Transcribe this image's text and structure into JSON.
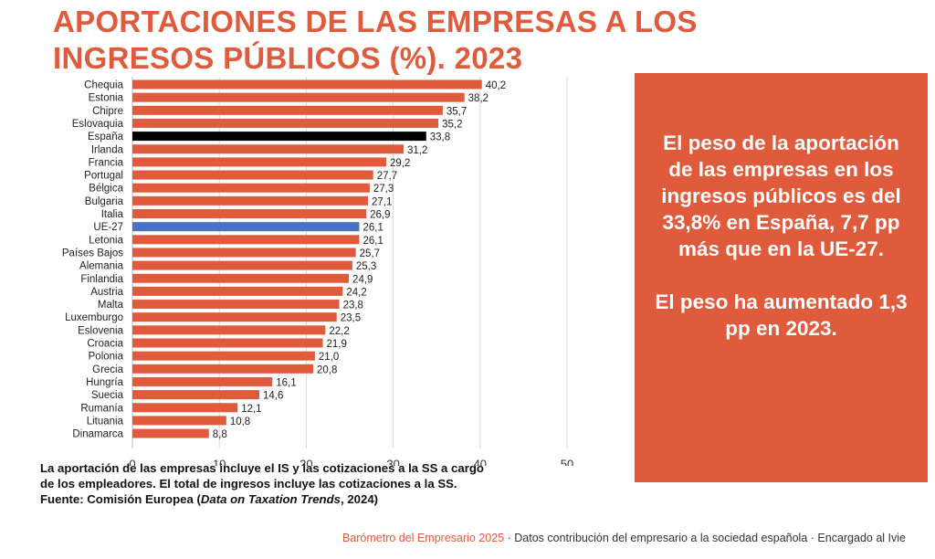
{
  "title": "APORTACIONES DE LAS EMPRESAS A LOS INGRESOS PÚBLICOS (%). 2023",
  "chart_data": {
    "type": "bar",
    "orientation": "horizontal",
    "title": "APORTACIONES DE LAS EMPRESAS A LOS INGRESOS PÚBLICOS (%). 2023",
    "xlabel": "",
    "ylabel": "",
    "xlim": [
      0,
      50
    ],
    "xticks": [
      0,
      10,
      20,
      30,
      40,
      50
    ],
    "grid": true,
    "categories": [
      "Chequia",
      "Estonia",
      "Chipre",
      "Eslovaquia",
      "España",
      "Irlanda",
      "Francia",
      "Portugal",
      "Bélgica",
      "Bulgaria",
      "Italia",
      "UE-27",
      "Letonia",
      "Países Bajos",
      "Alemania",
      "Finlandia",
      "Austria",
      "Malta",
      "Luxemburgo",
      "Eslovenia",
      "Croacia",
      "Polonia",
      "Grecia",
      "Hungría",
      "Suecia",
      "Rumanía",
      "Lituania",
      "Dinamarca"
    ],
    "values": [
      40.2,
      38.2,
      35.7,
      35.2,
      33.8,
      31.2,
      29.2,
      27.7,
      27.3,
      27.1,
      26.9,
      26.1,
      26.1,
      25.7,
      25.3,
      24.9,
      24.2,
      23.8,
      23.5,
      22.2,
      21.9,
      21.0,
      20.8,
      16.1,
      14.6,
      12.1,
      10.8,
      8.8
    ],
    "value_labels": [
      "40,2",
      "38,2",
      "35,7",
      "35,2",
      "33,8",
      "31,2",
      "29,2",
      "27,7",
      "27,3",
      "27,1",
      "26,9",
      "26,1",
      "26,1",
      "25,7",
      "25,3",
      "24,9",
      "24,2",
      "23,8",
      "23,5",
      "22,2",
      "21,9",
      "21,0",
      "20,8",
      "16,1",
      "14,6",
      "12,1",
      "10,8",
      "8,8"
    ],
    "highlights": {
      "España": "#000000",
      "UE-27": "#4a72c4"
    },
    "bar_color": "#e05a3c"
  },
  "note": {
    "line1": "La aportación de las empresas incluye el IS y las cotizaciones a la SS a cargo",
    "line2": "de los empleadores. El total de ingresos incluye las cotizaciones a la SS.",
    "source_prefix": "Fuente: Comisión Europea (",
    "source_italic": "Data on Taxation Trends",
    "source_suffix": ", 2024)"
  },
  "panel": {
    "text1": "El peso de la aportación de las empresas en los ingresos públicos es del 33,8% en España, 7,7 pp más que en la UE-27.",
    "text2": "El peso ha aumentado 1,3 pp en 2023.",
    "bg_color": "#e05a3c"
  },
  "footer": {
    "accent": "Barómetro del Empresario 2025",
    "rest": " · Datos contribución del empresario a la sociedad española · Encargado al Ivie"
  }
}
